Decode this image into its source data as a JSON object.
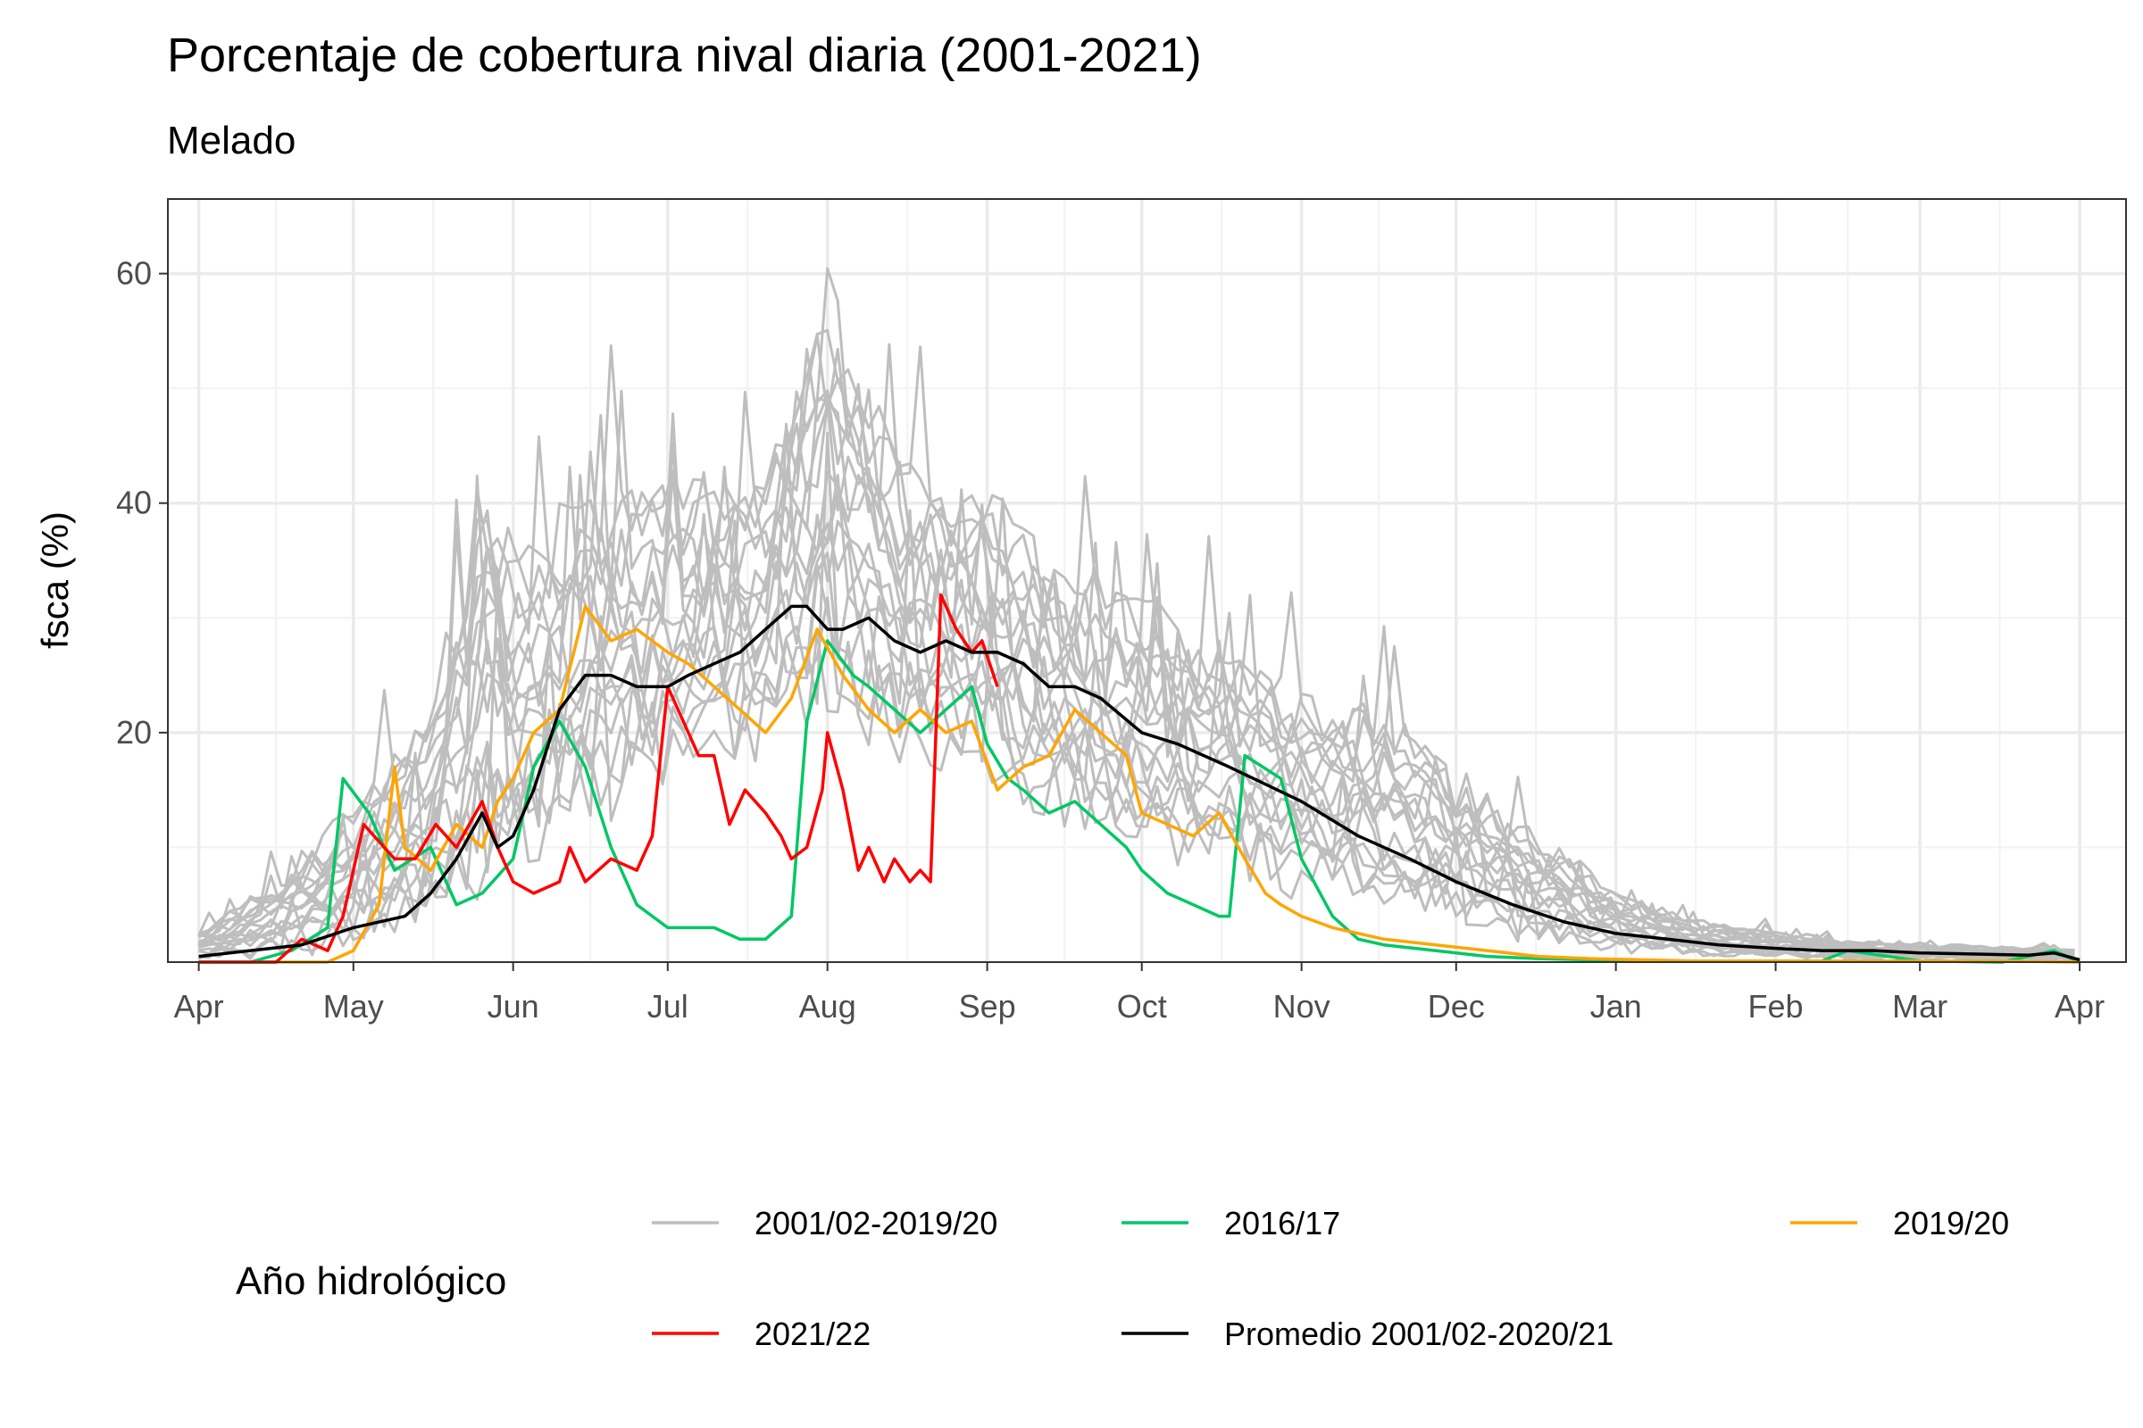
{
  "chart_data": {
    "type": "line",
    "title": "Porcentaje de cobertura nival diaria (2001-2021)",
    "subtitle": "Melado",
    "xlabel": "",
    "ylabel": "fsca (%)",
    "ylim": [
      0,
      66.5
    ],
    "yticks": [
      20,
      40,
      60
    ],
    "x_unit": "days since 1 April",
    "xlim": [
      -6,
      374
    ],
    "x_ticks": [
      {
        "label": "Apr",
        "day": 0
      },
      {
        "label": "May",
        "day": 30
      },
      {
        "label": "Jun",
        "day": 61
      },
      {
        "label": "Jul",
        "day": 91
      },
      {
        "label": "Aug",
        "day": 122
      },
      {
        "label": "Sep",
        "day": 153
      },
      {
        "label": "Oct",
        "day": 183
      },
      {
        "label": "Nov",
        "day": 214
      },
      {
        "label": "Dec",
        "day": 244
      },
      {
        "label": "Jan",
        "day": 275
      },
      {
        "label": "Feb",
        "day": 306
      },
      {
        "label": "Mar",
        "day": 334
      },
      {
        "label": "Apr",
        "day": 365
      }
    ],
    "grid": true,
    "legend": {
      "title": "Año hidrológico",
      "position": "bottom",
      "entries": [
        {
          "name": "2001/02-2019/20",
          "color": "#bebebe"
        },
        {
          "name": "2016/17",
          "color": "#00c765"
        },
        {
          "name": "2019/20",
          "color": "#ffa500"
        },
        {
          "name": "2021/22",
          "color": "#ff0000"
        },
        {
          "name": "Promedio 2001/02-2020/21",
          "color": "#000000"
        }
      ]
    },
    "series": [
      {
        "name": "2001/02-2019/20",
        "color": "#bebebe",
        "role": "background",
        "count": 18,
        "note": "individual historical years (approximate envelope)",
        "x": [
          0,
          15,
          30,
          45,
          52,
          55,
          61,
          70,
          80,
          91,
          100,
          110,
          122,
          135,
          150,
          165,
          183,
          200,
          214,
          230,
          244,
          260,
          275,
          290,
          306,
          320,
          334,
          350,
          365
        ],
        "upper": [
          3,
          8,
          15,
          25,
          40,
          50,
          40,
          42,
          45,
          46,
          46,
          47,
          66,
          48,
          45,
          38,
          34,
          30,
          26,
          24,
          18,
          12,
          7,
          4,
          3,
          2,
          1.8,
          1.5,
          1.2
        ],
        "lower": [
          0,
          0,
          0,
          1,
          2,
          3,
          5,
          8,
          10,
          13,
          14,
          16,
          17,
          16,
          14,
          10,
          8,
          6,
          4,
          3,
          2,
          1,
          0.5,
          0.2,
          0.1,
          0.1,
          0.1,
          0.1,
          0.1
        ]
      },
      {
        "name": "2016/17",
        "color": "#00c765",
        "x": [
          0,
          10,
          18,
          25,
          28,
          33,
          38,
          45,
          50,
          55,
          61,
          65,
          70,
          75,
          80,
          85,
          91,
          95,
          100,
          105,
          110,
          115,
          118,
          122,
          127,
          130,
          135,
          140,
          145,
          150,
          153,
          157,
          160,
          165,
          170,
          175,
          180,
          183,
          188,
          193,
          198,
          200,
          203,
          210,
          214,
          220,
          225,
          230,
          240,
          250,
          260,
          270,
          275,
          285,
          295,
          306,
          315,
          320,
          334,
          350,
          360,
          365
        ],
        "y": [
          0,
          0,
          1,
          3,
          16,
          13,
          8,
          10,
          5,
          6,
          9,
          17,
          21,
          17,
          10,
          5,
          3,
          3,
          3,
          2,
          2,
          4,
          21,
          28,
          25,
          24,
          22,
          20,
          22,
          24,
          19,
          16,
          15,
          13,
          14,
          12,
          10,
          8,
          6,
          5,
          4,
          4,
          18,
          16,
          9,
          4,
          2,
          1.5,
          1,
          0.5,
          0.3,
          0.2,
          0.1,
          0.1,
          0.1,
          0.1,
          0.1,
          1,
          0.1,
          0,
          1,
          0
        ]
      },
      {
        "name": "2019/20",
        "color": "#ffa500",
        "x": [
          0,
          15,
          25,
          30,
          35,
          38,
          40,
          45,
          50,
          55,
          58,
          61,
          65,
          70,
          75,
          80,
          85,
          91,
          95,
          100,
          105,
          110,
          115,
          120,
          125,
          130,
          135,
          140,
          145,
          150,
          155,
          160,
          165,
          170,
          175,
          180,
          183,
          188,
          193,
          198,
          203,
          207,
          210,
          214,
          220,
          230,
          240,
          250,
          260,
          270,
          280,
          290,
          306,
          315,
          334,
          350,
          365
        ],
        "y": [
          0,
          0,
          0,
          1,
          5,
          17,
          10,
          8,
          12,
          10,
          14,
          16,
          20,
          22,
          31,
          28,
          29,
          27,
          26,
          24,
          22,
          20,
          23,
          29,
          25,
          22,
          20,
          22,
          20,
          21,
          15,
          17,
          18,
          22,
          20,
          18,
          13,
          12,
          11,
          13,
          9,
          6,
          5,
          4,
          3,
          2,
          1.5,
          1,
          0.5,
          0.3,
          0.2,
          0.1,
          0.1,
          0.1,
          0.1,
          0.1,
          0
        ]
      },
      {
        "name": "2021/22",
        "color": "#ff0000",
        "x": [
          0,
          15,
          20,
          25,
          28,
          32,
          38,
          42,
          46,
          50,
          55,
          58,
          61,
          65,
          70,
          72,
          75,
          80,
          85,
          88,
          91,
          95,
          97,
          100,
          103,
          106,
          110,
          113,
          115,
          118,
          121,
          122,
          125,
          128,
          130,
          133,
          135,
          138,
          140,
          142,
          144,
          147,
          150,
          152,
          155
        ],
        "y": [
          0,
          0,
          2,
          1,
          4,
          12,
          9,
          9,
          12,
          10,
          14,
          10,
          7,
          6,
          7,
          10,
          7,
          9,
          8,
          11,
          24,
          20,
          18,
          18,
          12,
          15,
          13,
          11,
          9,
          10,
          15,
          20,
          15,
          8,
          10,
          7,
          9,
          7,
          8,
          7,
          32,
          29,
          27,
          28,
          24
        ]
      },
      {
        "name": "Promedio 2001/02-2020/21",
        "color": "#000000",
        "x": [
          0,
          10,
          20,
          30,
          40,
          45,
          50,
          55,
          58,
          61,
          65,
          70,
          75,
          80,
          85,
          91,
          95,
          100,
          105,
          110,
          115,
          118,
          122,
          125,
          130,
          135,
          140,
          145,
          150,
          155,
          160,
          165,
          170,
          175,
          183,
          190,
          200,
          214,
          225,
          235,
          244,
          255,
          265,
          275,
          285,
          295,
          306,
          315,
          325,
          334,
          345,
          355,
          360,
          365
        ],
        "y": [
          0.5,
          1,
          1.5,
          3,
          4,
          6,
          9,
          13,
          10,
          11,
          15,
          22,
          25,
          25,
          24,
          24,
          25,
          26,
          27,
          29,
          31,
          31,
          29,
          29,
          30,
          28,
          27,
          28,
          27,
          27,
          26,
          24,
          24,
          23,
          20,
          19,
          17,
          14,
          11,
          9,
          7,
          5,
          3.5,
          2.5,
          2,
          1.5,
          1.2,
          1,
          1,
          0.8,
          0.7,
          0.6,
          0.8,
          0.2
        ]
      }
    ]
  }
}
